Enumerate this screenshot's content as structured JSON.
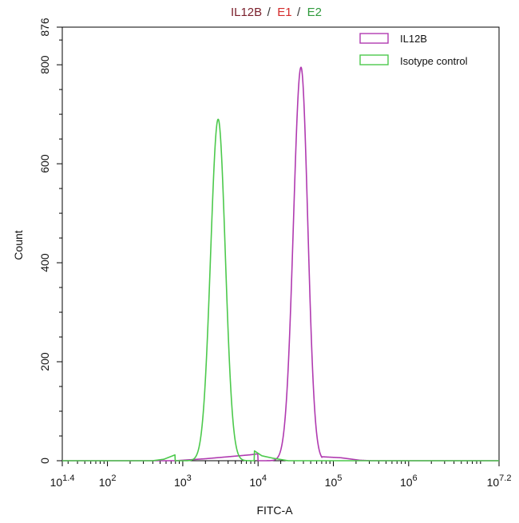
{
  "chart_data": {
    "type": "line",
    "title_parts": [
      {
        "text": "IL12B",
        "color": "#7a1f2b"
      },
      {
        "text": "/",
        "color": "#333333"
      },
      {
        "text": "E1",
        "color": "#d42a2a"
      },
      {
        "text": "/",
        "color": "#333333"
      },
      {
        "text": "E2",
        "color": "#2f9a3c"
      }
    ],
    "xlabel": "FITC-A",
    "ylabel": "Count",
    "xscale": "log",
    "xlim": [
      1.4,
      7.2
    ],
    "ylim": [
      0,
      876
    ],
    "x_ticks": [
      {
        "base": "10",
        "exp": "1.4",
        "value": 1.4
      },
      {
        "base": "10",
        "exp": "2",
        "value": 2
      },
      {
        "base": "10",
        "exp": "3",
        "value": 3
      },
      {
        "base": "10",
        "exp": "4",
        "value": 4
      },
      {
        "base": "10",
        "exp": "5",
        "value": 5
      },
      {
        "base": "10",
        "exp": "6",
        "value": 6
      },
      {
        "base": "10",
        "exp": "7.2",
        "value": 7.2
      }
    ],
    "y_ticks": [
      "0",
      "200",
      "400",
      "600",
      "800",
      "876"
    ],
    "legend_position": "top-right",
    "series": [
      {
        "name": "IL12B",
        "color": "#b03ab0",
        "peak_log10": 4.57,
        "peak_count": 795,
        "sigma_left": 0.1,
        "sigma_right": 0.09,
        "tail_left": [
          [
            2.9,
            0
          ],
          [
            3.3,
            4
          ],
          [
            3.6,
            8
          ],
          [
            3.9,
            12
          ],
          [
            4.0,
            14
          ]
        ],
        "tail_right": [
          [
            4.85,
            8
          ],
          [
            5.1,
            6
          ],
          [
            5.25,
            3
          ],
          [
            5.35,
            1
          ],
          [
            5.5,
            0
          ]
        ]
      },
      {
        "name": "Isotype control",
        "color": "#4cc94c",
        "peak_log10": 3.47,
        "peak_count": 690,
        "sigma_left": 0.1,
        "sigma_right": 0.095,
        "tail_left": [
          [
            2.6,
            0
          ],
          [
            2.75,
            3
          ],
          [
            2.9,
            12
          ]
        ],
        "tail_right": [
          [
            3.95,
            20
          ],
          [
            4.05,
            10
          ],
          [
            4.2,
            5
          ],
          [
            4.4,
            0
          ]
        ]
      }
    ]
  }
}
